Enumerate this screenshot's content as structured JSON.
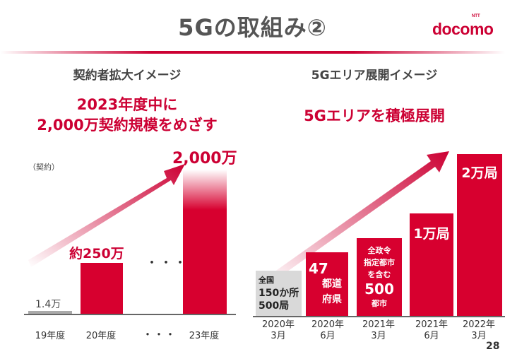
{
  "page": {
    "title": "5Gの取組み②",
    "logo": "docomo",
    "logo_small": "NTT",
    "page_number": "28",
    "brand_color": "#cc0033"
  },
  "left": {
    "heading": "契約者拡大イメージ",
    "headline_line1": "2023年度中に",
    "headline_line2": "2,000万契約規模をめざす",
    "unit": "（契約）",
    "ellipsis_mid": "・・・",
    "ellipsis_axis": "・・・"
  },
  "right": {
    "heading": "5Gエリア展開イメージ",
    "headline": "5Gエリアを積極展開"
  },
  "chart_data": [
    {
      "type": "bar",
      "ylabel": "（契約）",
      "categories": [
        "19年度",
        "20年度",
        "23年度"
      ],
      "values": [
        14000,
        2500000,
        20000000
      ],
      "value_labels": [
        "1.4万",
        "約250万",
        "2,000万"
      ]
    },
    {
      "type": "bar",
      "categories": [
        "2020年\n3月",
        "2020年\n6月",
        "2021年\n3月",
        "2021年\n6月",
        "2022年\n3月"
      ],
      "labels": [
        [
          "全国",
          "150か所",
          "500局"
        ],
        [
          "47",
          "都道",
          "府県"
        ],
        [
          "全政令",
          "指定都市",
          "を含む",
          "500",
          "都市"
        ],
        [
          "1万局"
        ],
        [
          "2万局"
        ]
      ]
    }
  ]
}
